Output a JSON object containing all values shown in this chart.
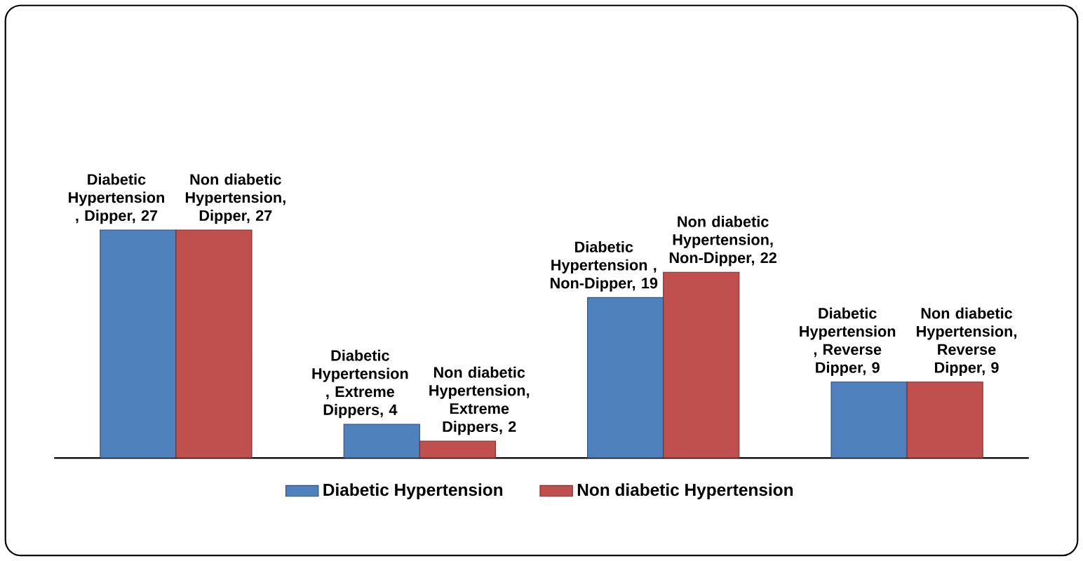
{
  "chart_data": {
    "type": "bar",
    "categories": [
      null,
      null,
      null,
      null
    ],
    "series": [
      {
        "name": "Diabetic Hypertension",
        "color": "#4f81bd",
        "values": [
          27,
          4,
          19,
          9
        ],
        "value_labels": [
          "Diabetic Hypertension , Dipper, 27",
          "Diabetic Hypertension , Extreme Dippers, 4",
          "Diabetic Hypertension , Non-Dipper, 19",
          "Diabetic Hypertension , Reverse Dipper, 9"
        ]
      },
      {
        "name": "Non diabetic Hypertension",
        "color": "#c0504d",
        "values": [
          27,
          2,
          22,
          9
        ],
        "value_labels": [
          "Non diabetic Hypertension, Dipper, 27",
          "Non diabetic Hypertension, Extreme Dippers, 2",
          "Non diabetic Hypertension, Non-Dipper, 22",
          "Non diabetic Hypertension, Reverse Dipper, 9"
        ]
      }
    ],
    "legend": "bottom"
  }
}
